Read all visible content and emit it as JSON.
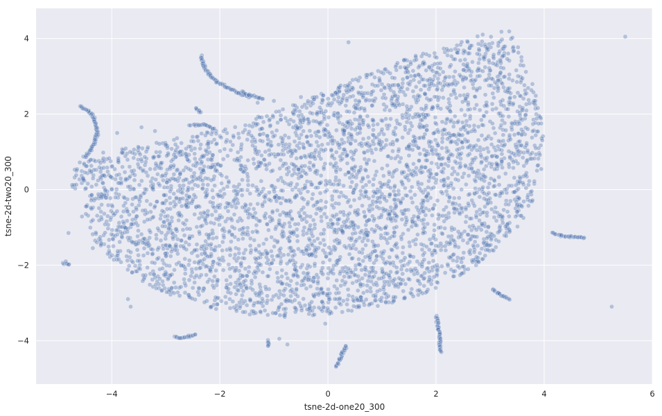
{
  "chart_data": {
    "type": "scatter",
    "title": "",
    "xlabel": "tsne-2d-one20_300",
    "ylabel": "tsne-2d-two20_300",
    "xlim": [
      -5.4,
      6.0
    ],
    "ylim": [
      -5.15,
      4.8
    ],
    "xticks": [
      -4,
      -2,
      0,
      2,
      4,
      6
    ],
    "yticks": [
      -4,
      -2,
      0,
      2,
      4
    ],
    "grid": true,
    "legend": "none",
    "colors": {
      "background": "#eaeaf2",
      "grid": "#ffffff",
      "marker": "#4c72b0",
      "marker_edge": "#ffffff"
    },
    "marker_opacity": 0.35,
    "main_cluster": {
      "description_shape": "dense half-moon blob",
      "boundary": [
        [
          -4.6,
          0.85
        ],
        [
          -4.3,
          0.95
        ],
        [
          -3.5,
          1.15
        ],
        [
          -2.5,
          1.45
        ],
        [
          -1.5,
          1.85
        ],
        [
          -0.5,
          2.3
        ],
        [
          0.5,
          2.95
        ],
        [
          1.5,
          3.5
        ],
        [
          2.5,
          3.95
        ],
        [
          3.3,
          4.35
        ],
        [
          3.6,
          3.6
        ],
        [
          3.85,
          2.5
        ],
        [
          4.0,
          1.5
        ],
        [
          3.95,
          0.5
        ],
        [
          3.75,
          -0.5
        ],
        [
          3.35,
          -1.3
        ],
        [
          2.6,
          -2.2
        ],
        [
          1.8,
          -2.75
        ],
        [
          0.8,
          -3.15
        ],
        [
          0.0,
          -3.3
        ],
        [
          -0.8,
          -3.38
        ],
        [
          -1.8,
          -3.3
        ],
        [
          -2.8,
          -2.9
        ],
        [
          -3.6,
          -2.35
        ],
        [
          -4.2,
          -1.6
        ],
        [
          -4.6,
          -0.7
        ],
        [
          -4.75,
          0.2
        ],
        [
          -4.7,
          0.7
        ]
      ],
      "approx_points": 4200
    },
    "strands": [
      [
        [
          -4.5,
          0.85
        ],
        [
          -4.38,
          1.05
        ],
        [
          -4.3,
          1.3
        ],
        [
          -4.27,
          1.55
        ],
        [
          -4.3,
          1.8
        ],
        [
          -4.38,
          2.02
        ],
        [
          -4.5,
          2.15
        ],
        [
          -4.6,
          2.2
        ]
      ],
      [
        [
          -2.35,
          3.55
        ],
        [
          -2.3,
          3.3
        ],
        [
          -2.2,
          3.05
        ],
        [
          -2.05,
          2.85
        ],
        [
          -1.85,
          2.7
        ],
        [
          -1.65,
          2.55
        ],
        [
          -1.45,
          2.45
        ]
      ],
      [
        [
          -2.85,
          -3.9
        ],
        [
          -2.7,
          -3.92
        ],
        [
          -2.55,
          -3.88
        ],
        [
          -2.45,
          -3.85
        ]
      ],
      [
        [
          -1.1,
          -4.0
        ],
        [
          -1.1,
          -4.15
        ]
      ],
      [
        [
          0.15,
          -4.7
        ],
        [
          0.22,
          -4.5
        ],
        [
          0.28,
          -4.3
        ],
        [
          0.35,
          -4.15
        ]
      ],
      [
        [
          2.0,
          -3.35
        ],
        [
          2.05,
          -3.7
        ],
        [
          2.07,
          -4.0
        ],
        [
          2.08,
          -4.3
        ]
      ],
      [
        [
          3.05,
          -2.65
        ],
        [
          3.15,
          -2.75
        ],
        [
          3.28,
          -2.85
        ],
        [
          3.35,
          -2.9
        ]
      ],
      [
        [
          4.15,
          -1.15
        ],
        [
          4.3,
          -1.22
        ],
        [
          4.5,
          -1.25
        ],
        [
          4.75,
          -1.27
        ]
      ],
      [
        [
          -4.9,
          -1.95
        ],
        [
          -4.78,
          -1.97
        ]
      ],
      [
        [
          -2.55,
          1.7
        ],
        [
          -2.3,
          1.72
        ],
        [
          -2.1,
          1.6
        ]
      ],
      [
        [
          -2.45,
          2.15
        ],
        [
          -2.35,
          2.05
        ]
      ],
      [
        [
          -1.6,
          2.6
        ],
        [
          -1.45,
          2.5
        ],
        [
          -1.2,
          2.4
        ]
      ]
    ],
    "outliers": [
      [
        5.5,
        4.05
      ],
      [
        0.38,
        3.9
      ],
      [
        5.25,
        -3.1
      ],
      [
        -0.05,
        -3.55
      ],
      [
        -3.7,
        -2.9
      ],
      [
        -3.65,
        -3.1
      ],
      [
        -4.8,
        -1.15
      ],
      [
        -0.9,
        -3.95
      ],
      [
        -0.75,
        -4.1
      ],
      [
        -0.5,
        2.45
      ],
      [
        -3.45,
        1.65
      ],
      [
        -1.0,
        2.35
      ],
      [
        2.0,
        3.1
      ],
      [
        2.35,
        3.45
      ],
      [
        -3.9,
        1.5
      ],
      [
        -3.2,
        1.55
      ],
      [
        -1.3,
        2.3
      ],
      [
        -4.25,
        1.45
      ],
      [
        -4.35,
        -1.55
      ],
      [
        -4.85,
        -1.9
      ]
    ]
  }
}
